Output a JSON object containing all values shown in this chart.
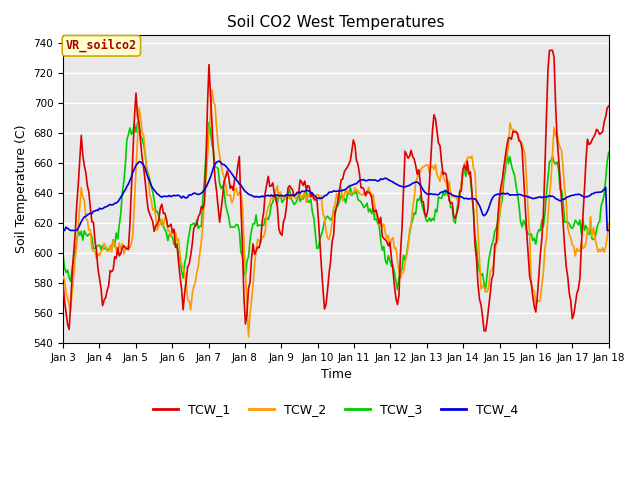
{
  "title": "Soil CO2 West Temperatures",
  "xlabel": "Time",
  "ylabel": "Soil Temperature (C)",
  "ylim": [
    540,
    745
  ],
  "yticks": [
    540,
    560,
    580,
    600,
    620,
    640,
    660,
    680,
    700,
    720,
    740
  ],
  "line_colors": {
    "TCW_1": "#dd0000",
    "TCW_2": "#ff9900",
    "TCW_3": "#00cc00",
    "TCW_4": "#0000dd"
  },
  "line_width": 1.2,
  "bg_color": "#e8e8e8",
  "annotation_text": "VR_soilco2",
  "annotation_color": "#aa0000",
  "annotation_bg": "#ffffcc",
  "annotation_border": "#ccaa00",
  "xtick_labels": [
    "Jan 3",
    "Jan 4",
    "Jan 5",
    "Jan 6",
    "Jan 7",
    "Jan 8",
    "Jan 9",
    "Jan 10",
    "Jan 11",
    "Jan 12",
    "Jan 13",
    "Jan 14",
    "Jan 15",
    "Jan 16",
    "Jan 17",
    "Jan 18"
  ],
  "title_fontsize": 11,
  "axis_label_fontsize": 9,
  "tick_fontsize": 7.5,
  "legend_fontsize": 9
}
